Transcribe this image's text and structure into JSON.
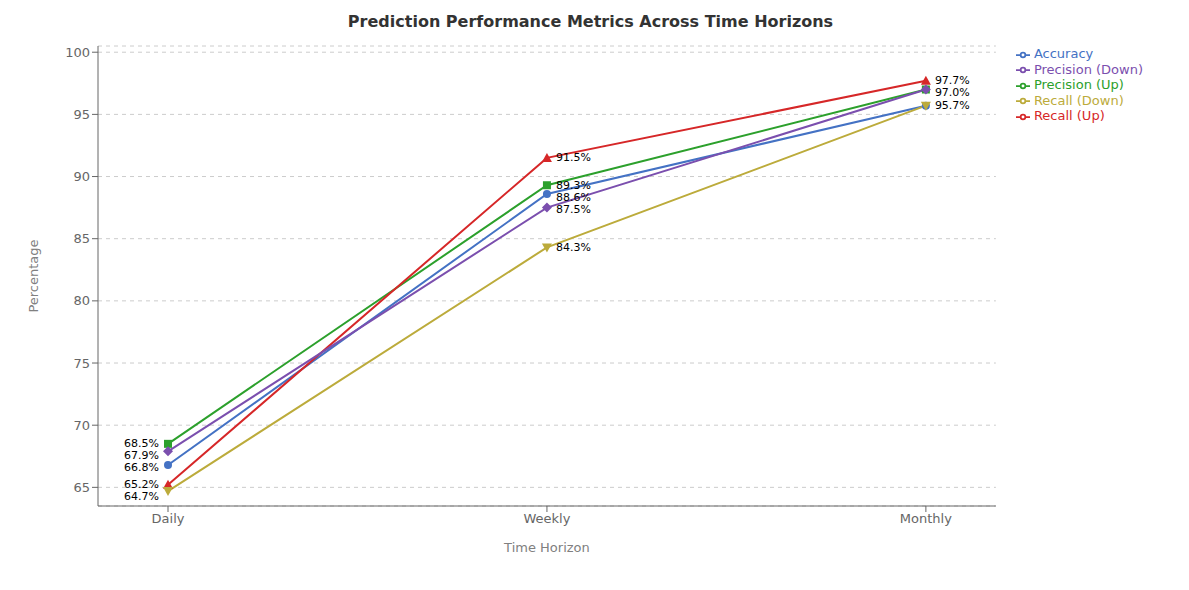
{
  "chart_data": {
    "type": "line",
    "title": "Prediction Performance Metrics Across Time Horizons",
    "xlabel": "Time Horizon",
    "ylabel": "Percentage",
    "categories": [
      "Daily",
      "Weekly",
      "Monthly"
    ],
    "series": [
      {
        "name": "Accuracy",
        "values": [
          66.8,
          88.6,
          95.7
        ],
        "color": "#4472C4",
        "marker": "circle",
        "line_style": "solid"
      },
      {
        "name": "Precision (Up)",
        "values": [
          68.5,
          89.3,
          97.0
        ],
        "color": "#2ca02c",
        "marker": "square",
        "line_style": "solid"
      },
      {
        "name": "Recall (Up)",
        "values": [
          65.2,
          91.5,
          97.7
        ],
        "color": "#d62728",
        "marker": "triangle",
        "line_style": "solid"
      },
      {
        "name": "Precision (Down)",
        "values": [
          67.9,
          87.5,
          97.0
        ],
        "color": "#7b4fae",
        "marker": "diamond",
        "line_style": "solid"
      },
      {
        "name": "Recall (Down)",
        "values": [
          64.7,
          84.3,
          95.7
        ],
        "color": "#bcab3b",
        "marker": "triangle-down",
        "line_style": "solid"
      }
    ],
    "ylim": [
      63.5,
      100.5
    ],
    "yticks": [
      65,
      70,
      75,
      80,
      85,
      90,
      95,
      100
    ],
    "grid": true,
    "legend": "right",
    "annotations": [
      {
        "text": "68.5%",
        "x": "Daily",
        "y": 68.5
      },
      {
        "text": "67.9%",
        "x": "Daily",
        "y": 67.9
      },
      {
        "text": "66.8%",
        "x": "Daily",
        "y": 66.8
      },
      {
        "text": "65.2%",
        "x": "Daily",
        "y": 65.2
      },
      {
        "text": "64.7%",
        "x": "Daily",
        "y": 64.7
      },
      {
        "text": "91.5%",
        "x": "Weekly",
        "y": 91.5
      },
      {
        "text": "89.3%",
        "x": "Weekly",
        "y": 89.3
      },
      {
        "text": "88.6%",
        "x": "Weekly",
        "y": 88.6
      },
      {
        "text": "87.5%",
        "x": "Weekly",
        "y": 87.5
      },
      {
        "text": "84.3%",
        "x": "Weekly",
        "y": 84.3
      },
      {
        "text": "97.7%",
        "x": "Monthly",
        "y": 97.7
      },
      {
        "text": "97.0%",
        "x": "Monthly",
        "y": 97.0
      },
      {
        "text": "95.7%",
        "x": "Monthly",
        "y": 95.7
      }
    ]
  }
}
